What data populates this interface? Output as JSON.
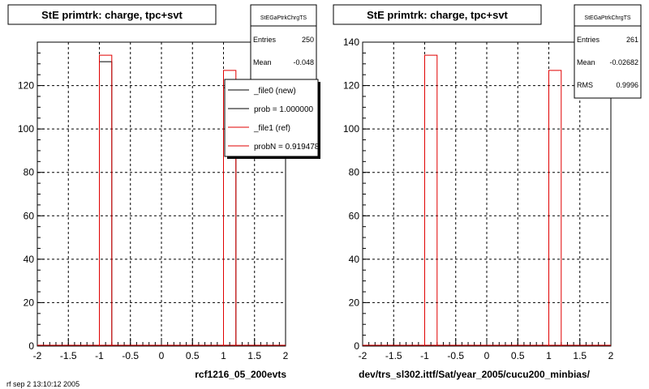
{
  "footer": "rf sep 2 13:10:12 2005",
  "chart_data": [
    {
      "type": "bar",
      "title": "StE primtrk: charge, tpc+svt",
      "xlabel": "rcf1216_05_200evts",
      "ylabel": "",
      "xlim": [
        -2,
        2
      ],
      "ylim": [
        0,
        140
      ],
      "x_ticks": [
        "-2",
        "-1.5",
        "-1",
        "-0.5",
        "0",
        "0.5",
        "1",
        "1.5",
        "2"
      ],
      "y_ticks": [
        "0",
        "20",
        "40",
        "60",
        "80",
        "100",
        "120"
      ],
      "y_tick_values": [
        0,
        20,
        40,
        60,
        80,
        100,
        120
      ],
      "grid": true,
      "bin_edges": [
        [
          -1.0,
          -0.8
        ],
        [
          1.0,
          1.2
        ]
      ],
      "series": [
        {
          "name": "_file0 (new)",
          "color": "#000000",
          "values": [
            131,
            119
          ]
        },
        {
          "name": "_file1 (ref)",
          "color": "#e00000",
          "values": [
            134,
            127
          ]
        }
      ],
      "stats": {
        "title": "StEGaPtrkChrgTS",
        "rows": [
          {
            "label": "Entries",
            "value": "250"
          },
          {
            "label": "Mean",
            "value": "-0.048"
          }
        ]
      },
      "legend": {
        "position": "top-right",
        "entries": [
          {
            "text": "_file0 (new)",
            "color": "#000000"
          },
          {
            "text": "prob = 1.000000",
            "color": "#000000"
          },
          {
            "text": "_file1 (ref)",
            "color": "#e00000"
          },
          {
            "text": "probN = 0.919478",
            "color": "#e00000"
          }
        ]
      }
    },
    {
      "type": "bar",
      "title": "StE primtrk: charge, tpc+svt",
      "xlabel": "dev/trs_sl302.ittf/Sat/year_2005/cucu200_minbias/",
      "ylabel": "",
      "xlim": [
        -2,
        2
      ],
      "ylim": [
        0,
        140
      ],
      "x_ticks": [
        "-2",
        "-1.5",
        "-1",
        "-0.5",
        "0",
        "0.5",
        "1",
        "1.5",
        "2"
      ],
      "y_ticks": [
        "0",
        "20",
        "40",
        "60",
        "80",
        "100",
        "120",
        "140"
      ],
      "y_tick_values": [
        0,
        20,
        40,
        60,
        80,
        100,
        120,
        140
      ],
      "grid": true,
      "bin_edges": [
        [
          -1.0,
          -0.8
        ],
        [
          1.0,
          1.2
        ]
      ],
      "series": [
        {
          "name": "",
          "color": "#e00000",
          "values": [
            134,
            127
          ]
        }
      ],
      "stats": {
        "title": "StEGaPtrkChrgTS",
        "rows": [
          {
            "label": "Entries",
            "value": "261"
          },
          {
            "label": "Mean",
            "value": "-0.02682"
          },
          {
            "label": "RMS",
            "value": "0.9996"
          }
        ]
      }
    }
  ]
}
